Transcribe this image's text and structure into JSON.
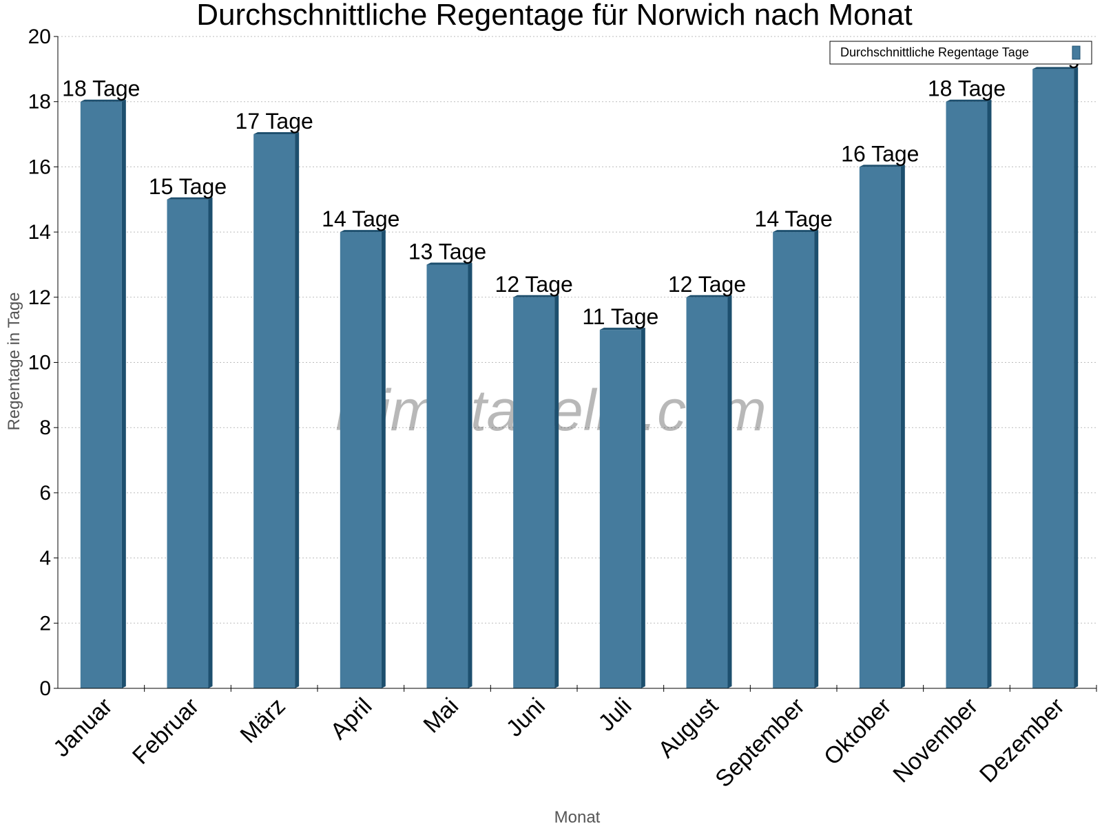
{
  "chart_data": {
    "type": "bar",
    "title": "Durchschnittliche Regentage für Norwich nach Monat",
    "xlabel": "Monat",
    "ylabel": "Regentage in Tage",
    "ylim": [
      0,
      20
    ],
    "yticks": [
      0,
      2,
      4,
      6,
      8,
      10,
      12,
      14,
      16,
      18,
      20
    ],
    "grid": "horizontal-dotted",
    "legend_position": "top-right",
    "categories": [
      "Januar",
      "Februar",
      "März",
      "April",
      "Mai",
      "Juni",
      "Juli",
      "August",
      "September",
      "Oktober",
      "November",
      "Dezember"
    ],
    "series": [
      {
        "name": "Durchschnittliche Regentage Tage",
        "values": [
          18,
          15,
          17,
          14,
          13,
          12,
          11,
          12,
          14,
          16,
          18,
          19
        ],
        "labels": [
          "18 Tage",
          "15 Tage",
          "17 Tage",
          "14 Tage",
          "13 Tage",
          "12 Tage",
          "11 Tage",
          "12 Tage",
          "14 Tage",
          "16 Tage",
          "18 Tage",
          "19 Tage"
        ]
      }
    ],
    "colors": {
      "bar": "#457b9d",
      "bar_edge": "#1d4f6e"
    }
  },
  "watermark": "klimatabelle.com"
}
